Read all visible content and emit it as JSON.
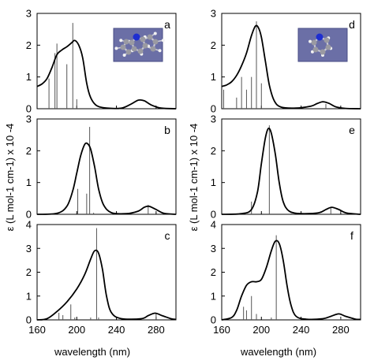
{
  "figure": {
    "ylabel_left": "ε (L mol-1 cm-1) x 10 -4",
    "ylabel_right": "ε (L mol-1 cm-1) x 10 -4",
    "xlabel_left": "wavelength (nm)",
    "xlabel_right": "wavelength (nm)"
  },
  "chart_data": [
    {
      "type": "line",
      "panel": "a",
      "xlim": [
        160,
        300
      ],
      "ylim": [
        0,
        3
      ],
      "xticks": [
        160,
        200,
        240,
        280
      ],
      "yticks": [
        0,
        1,
        2,
        3
      ],
      "curve": [
        [
          160,
          0.7
        ],
        [
          165,
          0.78
        ],
        [
          170,
          0.95
        ],
        [
          175,
          1.3
        ],
        [
          180,
          1.7
        ],
        [
          185,
          1.85
        ],
        [
          190,
          1.95
        ],
        [
          195,
          2.08
        ],
        [
          198,
          2.15
        ],
        [
          202,
          2.0
        ],
        [
          206,
          1.6
        ],
        [
          210,
          0.8
        ],
        [
          214,
          0.35
        ],
        [
          220,
          0.1
        ],
        [
          230,
          0.02
        ],
        [
          245,
          0.02
        ],
        [
          255,
          0.15
        ],
        [
          262,
          0.27
        ],
        [
          268,
          0.25
        ],
        [
          275,
          0.12
        ],
        [
          285,
          0.02
        ],
        [
          300,
          0.0
        ]
      ],
      "sticks": [
        [
          172,
          0.95
        ],
        [
          178,
          1.75
        ],
        [
          180,
          2.05
        ],
        [
          190,
          1.4
        ],
        [
          196,
          2.7
        ],
        [
          200,
          0.3
        ]
      ],
      "has_molecule_inset": true
    },
    {
      "type": "line",
      "panel": "b",
      "xlim": [
        160,
        300
      ],
      "ylim": [
        0,
        3
      ],
      "xticks": [
        160,
        200,
        240,
        280
      ],
      "yticks": [
        0,
        1,
        2,
        3
      ],
      "curve": [
        [
          160,
          0.0
        ],
        [
          180,
          0.03
        ],
        [
          190,
          0.25
        ],
        [
          196,
          0.75
        ],
        [
          200,
          1.3
        ],
        [
          204,
          1.85
        ],
        [
          208,
          2.2
        ],
        [
          211,
          2.22
        ],
        [
          214,
          2.05
        ],
        [
          218,
          1.5
        ],
        [
          222,
          0.8
        ],
        [
          227,
          0.3
        ],
        [
          235,
          0.05
        ],
        [
          250,
          0.02
        ],
        [
          262,
          0.1
        ],
        [
          268,
          0.22
        ],
        [
          273,
          0.25
        ],
        [
          280,
          0.15
        ],
        [
          288,
          0.03
        ],
        [
          300,
          0.0
        ]
      ],
      "sticks": [
        [
          201,
          0.8
        ],
        [
          210,
          0.65
        ],
        [
          213,
          2.75
        ],
        [
          217,
          0.05
        ],
        [
          272,
          0.3
        ]
      ]
    },
    {
      "type": "line",
      "panel": "c",
      "xlim": [
        160,
        300
      ],
      "ylim": [
        0,
        4
      ],
      "xticks": [
        160,
        200,
        240,
        280
      ],
      "yticks": [
        0,
        1,
        2,
        3,
        4
      ],
      "curve": [
        [
          160,
          0.0
        ],
        [
          170,
          0.05
        ],
        [
          180,
          0.35
        ],
        [
          190,
          0.75
        ],
        [
          200,
          1.3
        ],
        [
          208,
          1.9
        ],
        [
          214,
          2.55
        ],
        [
          218,
          2.9
        ],
        [
          222,
          2.8
        ],
        [
          226,
          2.1
        ],
        [
          230,
          1.0
        ],
        [
          235,
          0.3
        ],
        [
          245,
          0.05
        ],
        [
          265,
          0.05
        ],
        [
          272,
          0.18
        ],
        [
          279,
          0.28
        ],
        [
          286,
          0.18
        ],
        [
          295,
          0.05
        ],
        [
          300,
          0.02
        ]
      ],
      "sticks": [
        [
          182,
          0.3
        ],
        [
          186,
          0.2
        ],
        [
          194,
          0.65
        ],
        [
          198,
          0.1
        ],
        [
          214,
          0.1
        ],
        [
          220,
          3.85
        ],
        [
          222,
          0.1
        ],
        [
          280,
          0.3
        ]
      ]
    },
    {
      "type": "line",
      "panel": "d",
      "xlim": [
        160,
        300
      ],
      "ylim": [
        0,
        3
      ],
      "xticks": [
        160,
        200,
        240,
        280
      ],
      "yticks": [
        0,
        1,
        2,
        3
      ],
      "curve": [
        [
          160,
          0.7
        ],
        [
          165,
          0.75
        ],
        [
          170,
          0.85
        ],
        [
          175,
          1.05
        ],
        [
          180,
          1.35
        ],
        [
          185,
          1.75
        ],
        [
          190,
          2.3
        ],
        [
          194,
          2.6
        ],
        [
          197,
          2.55
        ],
        [
          200,
          2.25
        ],
        [
          204,
          1.5
        ],
        [
          208,
          0.75
        ],
        [
          213,
          0.25
        ],
        [
          220,
          0.05
        ],
        [
          235,
          0.02
        ],
        [
          250,
          0.08
        ],
        [
          256,
          0.16
        ],
        [
          262,
          0.22
        ],
        [
          268,
          0.17
        ],
        [
          275,
          0.06
        ],
        [
          285,
          0.01
        ],
        [
          300,
          0.0
        ]
      ],
      "sticks": [
        [
          162,
          0.6
        ],
        [
          175,
          0.35
        ],
        [
          180,
          1.0
        ],
        [
          185,
          0.6
        ],
        [
          190,
          1.0
        ],
        [
          195,
          2.75
        ],
        [
          200,
          0.8
        ],
        [
          265,
          0.15
        ]
      ],
      "has_molecule_inset": true
    },
    {
      "type": "line",
      "panel": "e",
      "xlim": [
        160,
        300
      ],
      "ylim": [
        0,
        3
      ],
      "xticks": [
        160,
        200,
        240,
        280
      ],
      "yticks": [
        0,
        1,
        2,
        3
      ],
      "curve": [
        [
          160,
          0.0
        ],
        [
          180,
          0.02
        ],
        [
          190,
          0.15
        ],
        [
          196,
          0.7
        ],
        [
          200,
          1.6
        ],
        [
          204,
          2.4
        ],
        [
          207,
          2.7
        ],
        [
          210,
          2.55
        ],
        [
          214,
          1.9
        ],
        [
          218,
          1.0
        ],
        [
          222,
          0.4
        ],
        [
          228,
          0.1
        ],
        [
          240,
          0.02
        ],
        [
          258,
          0.05
        ],
        [
          265,
          0.15
        ],
        [
          271,
          0.22
        ],
        [
          278,
          0.15
        ],
        [
          286,
          0.04
        ],
        [
          300,
          0.0
        ]
      ],
      "sticks": [
        [
          190,
          0.4
        ],
        [
          208,
          2.8
        ],
        [
          230,
          0.03
        ],
        [
          270,
          0.2
        ]
      ]
    },
    {
      "type": "line",
      "panel": "f",
      "xlim": [
        160,
        300
      ],
      "ylim": [
        0,
        4
      ],
      "xticks": [
        160,
        200,
        240,
        280
      ],
      "yticks": [
        0,
        1,
        2,
        3,
        4
      ],
      "curve": [
        [
          160,
          0.0
        ],
        [
          170,
          0.1
        ],
        [
          175,
          0.4
        ],
        [
          180,
          1.0
        ],
        [
          185,
          1.45
        ],
        [
          190,
          1.6
        ],
        [
          195,
          1.6
        ],
        [
          200,
          1.7
        ],
        [
          205,
          2.2
        ],
        [
          210,
          2.9
        ],
        [
          214,
          3.3
        ],
        [
          218,
          3.2
        ],
        [
          222,
          2.5
        ],
        [
          226,
          1.4
        ],
        [
          230,
          0.6
        ],
        [
          235,
          0.15
        ],
        [
          245,
          0.03
        ],
        [
          262,
          0.05
        ],
        [
          270,
          0.15
        ],
        [
          278,
          0.25
        ],
        [
          285,
          0.15
        ],
        [
          295,
          0.03
        ],
        [
          300,
          0.02
        ]
      ],
      "sticks": [
        [
          182,
          0.55
        ],
        [
          185,
          0.4
        ],
        [
          190,
          1.0
        ],
        [
          195,
          0.25
        ],
        [
          210,
          0.1
        ],
        [
          215,
          3.55
        ],
        [
          280,
          0.1
        ]
      ]
    }
  ]
}
